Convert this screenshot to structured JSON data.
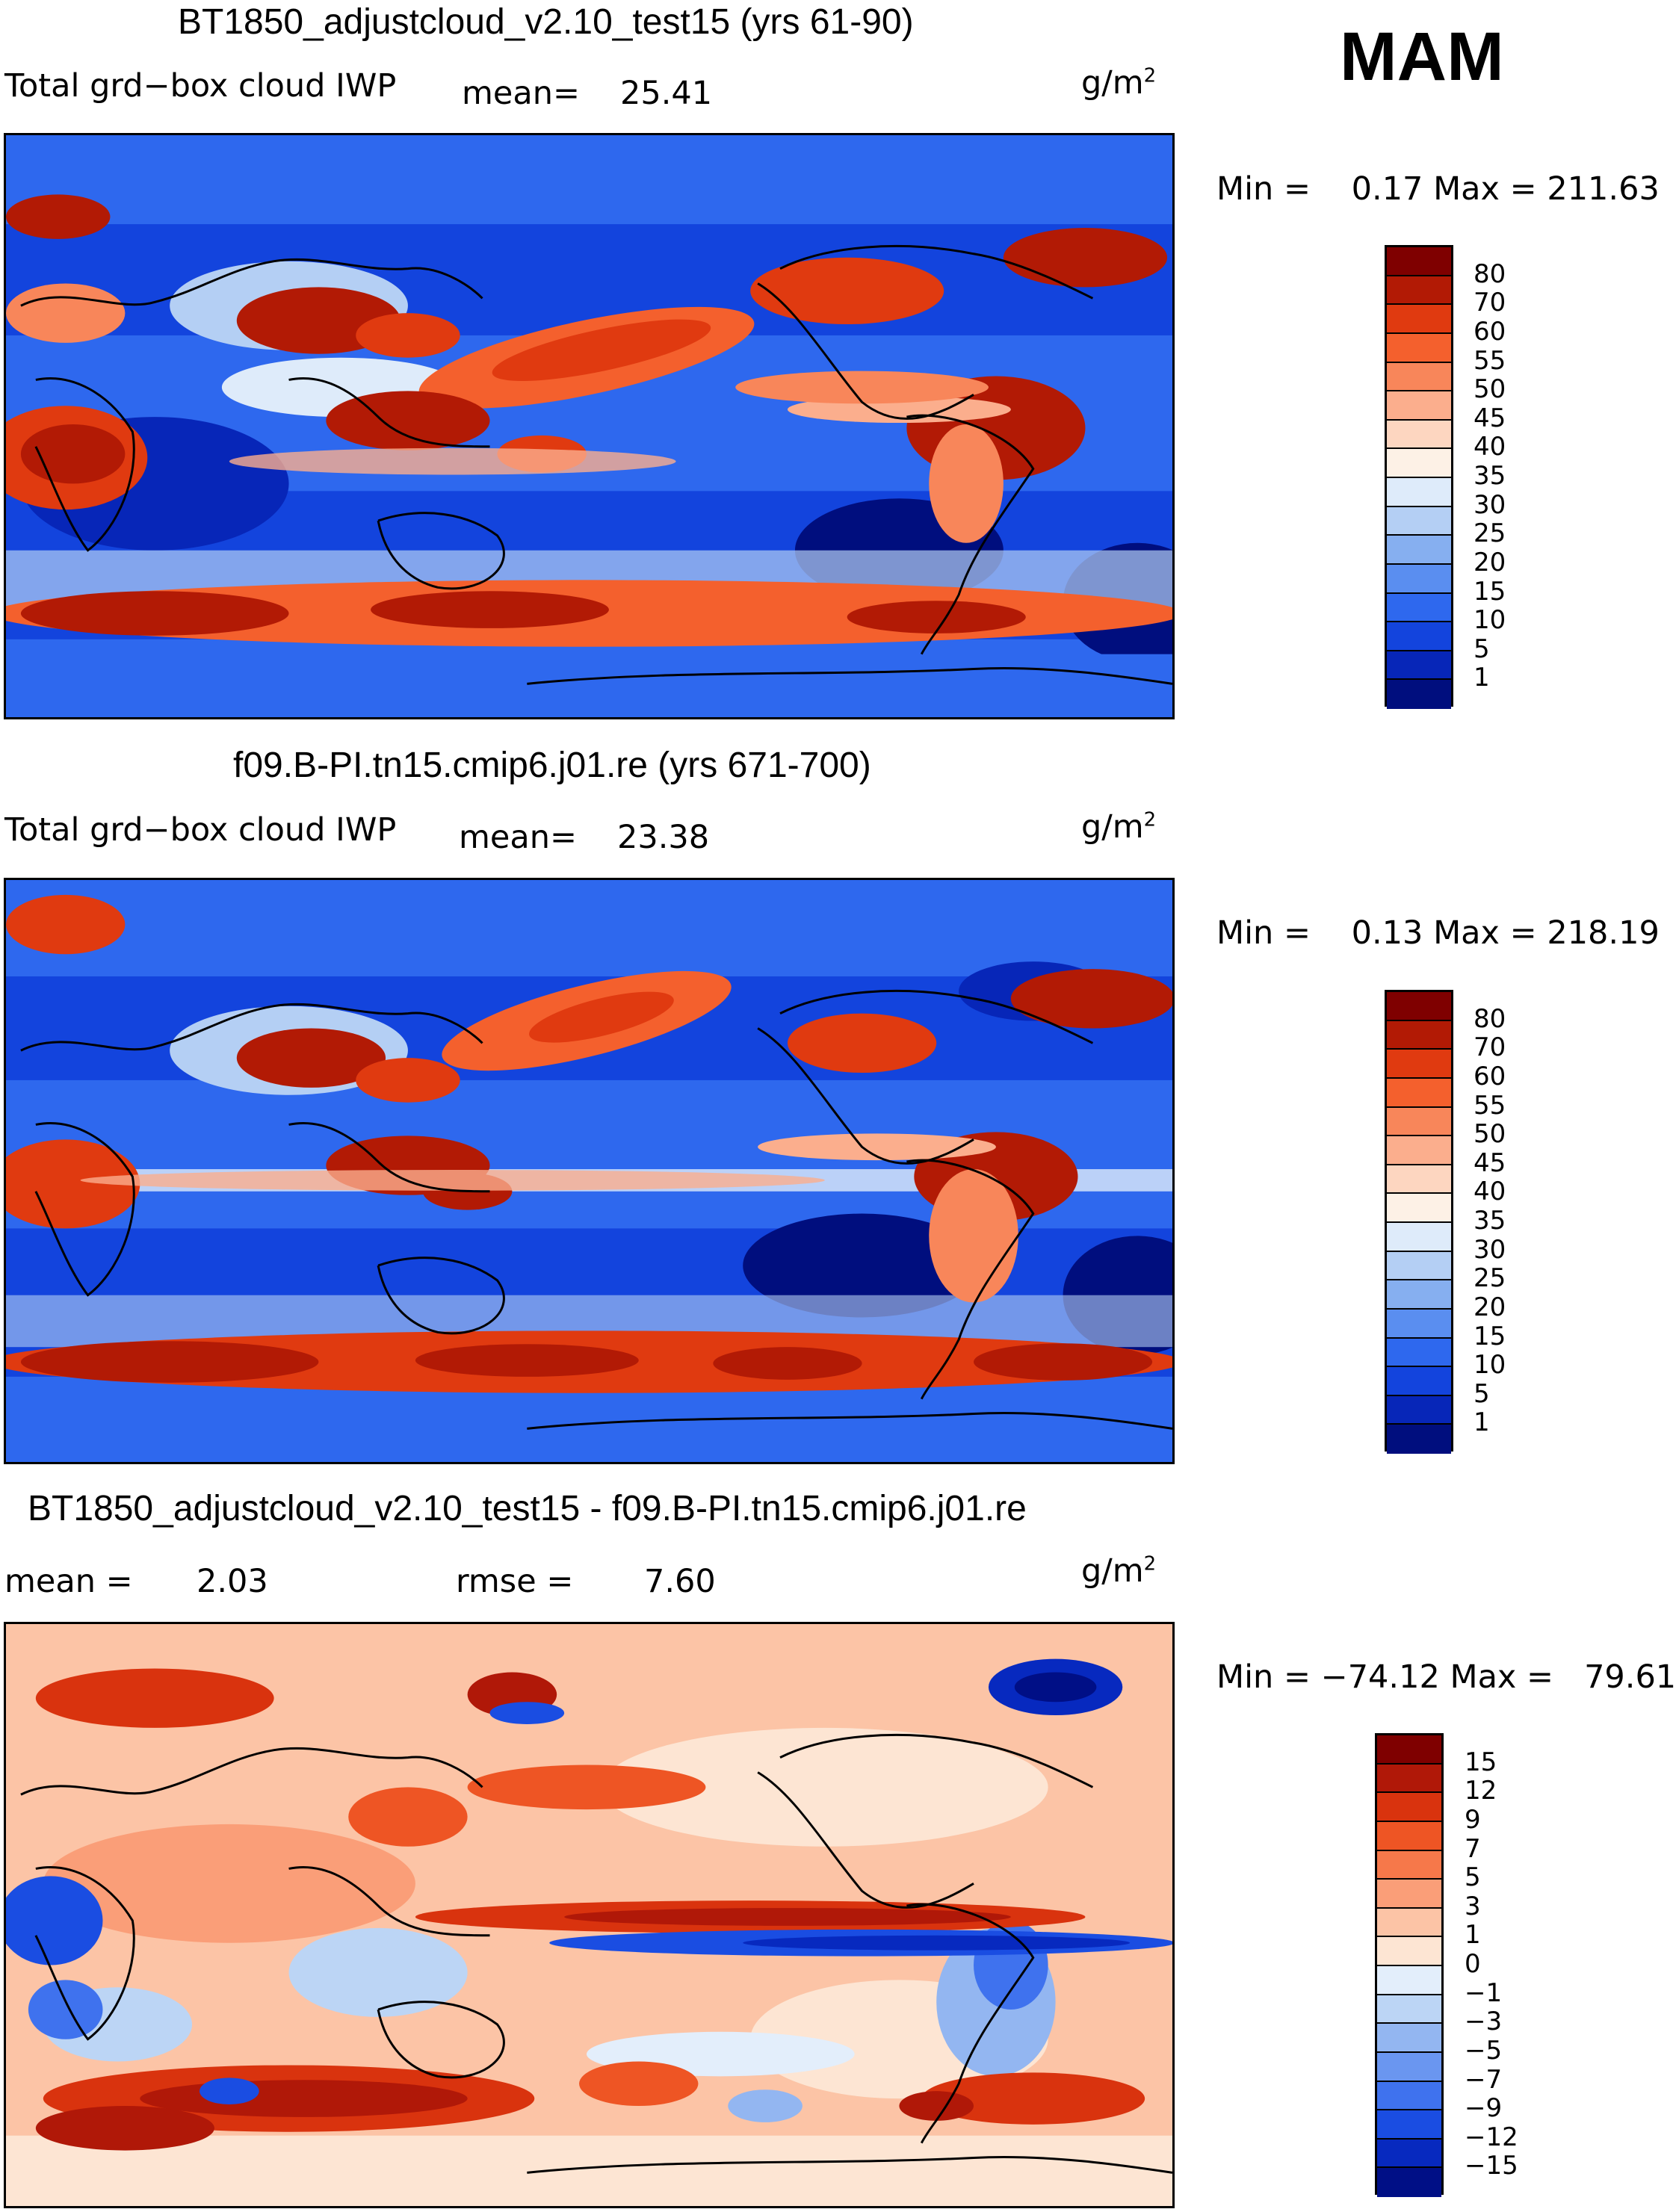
{
  "season": "MAM",
  "panels": [
    {
      "title": "BT1850_adjustcloud_v2.10_test15 (yrs 61-90)",
      "variable": "Total grd−box cloud IWP",
      "mean_label": "mean=",
      "mean_value": "25.41",
      "unit_base": "g/m",
      "unit_exp": "2",
      "minmax": "Min =    0.17 Max = 211.63",
      "colorbar_labels": [
        "80",
        "70",
        "60",
        "55",
        "50",
        "45",
        "40",
        "35",
        "30",
        "25",
        "20",
        "15",
        "10",
        "5",
        "1"
      ],
      "colorbar_colors": [
        "#7f0000",
        "#b21a05",
        "#e03a10",
        "#f4602d",
        "#f8865a",
        "#fbae8d",
        "#fdd6c0",
        "#fdf1e6",
        "#deebfa",
        "#b4cff4",
        "#86aff0",
        "#5a8ef0",
        "#2e68ee",
        "#1344dd",
        "#0726b8",
        "#000e7e"
      ]
    },
    {
      "title": "f09.B-PI.tn15.cmip6.j01.re (yrs 671-700)",
      "variable": "Total grd−box cloud IWP",
      "mean_label": "mean=",
      "mean_value": "23.38",
      "unit_base": "g/m",
      "unit_exp": "2",
      "minmax": "Min =    0.13 Max = 218.19",
      "colorbar_labels": [
        "80",
        "70",
        "60",
        "55",
        "50",
        "45",
        "40",
        "35",
        "30",
        "25",
        "20",
        "15",
        "10",
        "5",
        "1"
      ],
      "colorbar_colors": [
        "#7f0000",
        "#b21a05",
        "#e03a10",
        "#f4602d",
        "#f8865a",
        "#fbae8d",
        "#fdd6c0",
        "#fdf1e6",
        "#deebfa",
        "#b4cff4",
        "#86aff0",
        "#5a8ef0",
        "#2e68ee",
        "#1344dd",
        "#0726b8",
        "#000e7e"
      ]
    },
    {
      "title": "BT1850_adjustcloud_v2.10_test15 - f09.B-PI.tn15.cmip6.j01.re",
      "mean_label": "mean =",
      "mean_value": "2.03",
      "rmse_label": "rmse =",
      "rmse_value": "7.60",
      "unit_base": "g/m",
      "unit_exp": "2",
      "minmax": "Min = −74.12 Max =   79.61",
      "colorbar_labels": [
        "15",
        "12",
        "9",
        "7",
        "5",
        "3",
        "1",
        "0",
        "−1",
        "−3",
        "−5",
        "−7",
        "−9",
        "−12",
        "−15"
      ],
      "colorbar_colors": [
        "#7f0000",
        "#b01808",
        "#d9330e",
        "#ee5524",
        "#f6784a",
        "#fa9e78",
        "#fcc4a6",
        "#fde5d3",
        "#e3eefb",
        "#bcd5f5",
        "#93b6f1",
        "#6a96f0",
        "#3f72ee",
        "#1a4de2",
        "#0729bf",
        "#000f86"
      ]
    }
  ]
}
